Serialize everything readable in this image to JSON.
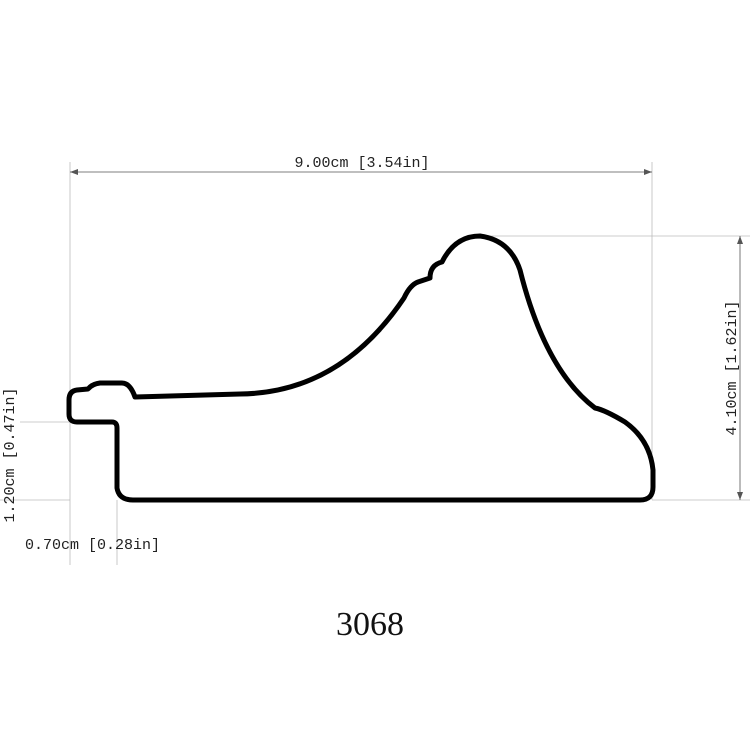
{
  "dimensions": {
    "width": "9.00cm [3.54in]",
    "height": "4.10cm [1.62in]",
    "lip_height": "1.20cm [0.47in]",
    "lip_width": "0.70cm [0.28in]"
  },
  "code": "3068"
}
